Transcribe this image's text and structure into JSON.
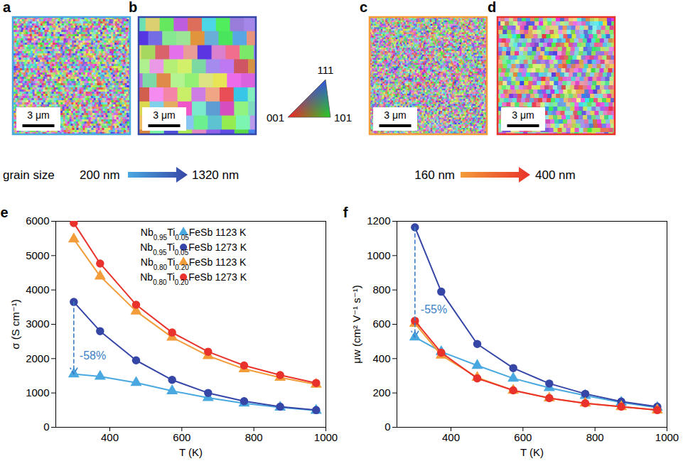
{
  "panels": [
    {
      "panel": "a",
      "scale_bar": {
        "value": 3,
        "label": "3 μm"
      },
      "color": "#4aa8e0"
    },
    {
      "panel": "b",
      "scale_bar": {
        "value": 3,
        "label": "3 μm"
      },
      "color": "#3646a6"
    },
    {
      "panel": "c",
      "scale_bar": {
        "value": 3,
        "label": "3 μm"
      },
      "color": "#f39c3a"
    },
    {
      "panel": "d",
      "scale_bar": {
        "value": 3,
        "label": "3 μm"
      },
      "color": "#e8322b"
    }
  ],
  "ipf_key": {
    "top": "111",
    "left": "001",
    "right": "101"
  },
  "grain_size": {
    "label": "grain size",
    "changes": [
      {
        "from": {
          "value": 200,
          "label": "200 nm"
        },
        "to": {
          "value": 1320,
          "label": "1320 nm"
        }
      },
      {
        "from": {
          "value": 160,
          "label": "160 nm"
        },
        "to": {
          "value": 400,
          "label": "400 nm"
        }
      }
    ]
  },
  "chart_data": [
    {
      "panel": "e",
      "type": "line",
      "x_label": "T (K)",
      "y_label": "σ (S cm⁻¹)",
      "x": [
        300,
        373,
        473,
        573,
        673,
        773,
        873,
        973
      ],
      "xlim": [
        250,
        1000
      ],
      "xticks": [
        400,
        600,
        800,
        1000
      ],
      "ylim": [
        0,
        6000
      ],
      "yticks": [
        0,
        1000,
        2000,
        3000,
        4000,
        5000,
        6000
      ],
      "grid": false,
      "legend": "upper right",
      "series": [
        {
          "name": "Nb0.95Ti0.05FeSb 1123 K",
          "color": "#4aa8e0",
          "marker": "triangle",
          "values": [
            1550,
            1480,
            1300,
            1060,
            860,
            700,
            580,
            490
          ]
        },
        {
          "name": "Nb0.95Ti0.05FeSb 1273 K",
          "color": "#3646a6",
          "marker": "circle",
          "values": [
            3650,
            2800,
            1950,
            1380,
            1000,
            760,
            600,
            500
          ]
        },
        {
          "name": "Nb0.80Ti0.20FeSb 1123 K",
          "color": "#f39c3a",
          "marker": "triangle",
          "values": [
            5480,
            4400,
            3380,
            2620,
            2080,
            1700,
            1450,
            1250
          ]
        },
        {
          "name": "Nb0.80Ti0.20FeSb 1273 K",
          "color": "#e8322b",
          "marker": "circle",
          "values": [
            5950,
            4770,
            3570,
            2760,
            2200,
            1800,
            1520,
            1290
          ]
        }
      ],
      "annotations": [
        {
          "text": "-58%",
          "x": 300,
          "y_from": 3650,
          "y_to": 1550,
          "color": "#3b7fc8"
        }
      ]
    },
    {
      "panel": "f",
      "type": "line",
      "x_label": "T (K)",
      "y_label": "μw (cm² V⁻¹ s⁻¹)",
      "x": [
        300,
        373,
        473,
        573,
        673,
        773,
        873,
        973
      ],
      "xlim": [
        250,
        1000
      ],
      "xticks": [
        400,
        600,
        800,
        1000
      ],
      "ylim": [
        0,
        1200
      ],
      "yticks": [
        0,
        200,
        400,
        600,
        800,
        1000,
        1200
      ],
      "grid": false,
      "series": [
        {
          "name": "Nb0.95Ti0.05FeSb 1123 K",
          "color": "#4aa8e0",
          "marker": "triangle",
          "values": [
            525,
            440,
            360,
            285,
            230,
            185,
            145,
            115
          ]
        },
        {
          "name": "Nb0.95Ti0.05FeSb 1273 K",
          "color": "#3646a6",
          "marker": "circle",
          "values": [
            1165,
            790,
            485,
            345,
            255,
            195,
            150,
            120
          ]
        },
        {
          "name": "Nb0.80Ti0.20FeSb 1123 K",
          "color": "#f39c3a",
          "marker": "triangle",
          "values": [
            605,
            420,
            290,
            215,
            170,
            140,
            120,
            100
          ]
        },
        {
          "name": "Nb0.80Ti0.20FeSb 1273 K",
          "color": "#e8322b",
          "marker": "circle",
          "values": [
            620,
            435,
            285,
            215,
            170,
            140,
            120,
            100
          ]
        }
      ],
      "annotations": [
        {
          "text": "-55%",
          "x": 300,
          "y_from": 1165,
          "y_to": 525,
          "color": "#3b7fc8"
        }
      ]
    }
  ]
}
